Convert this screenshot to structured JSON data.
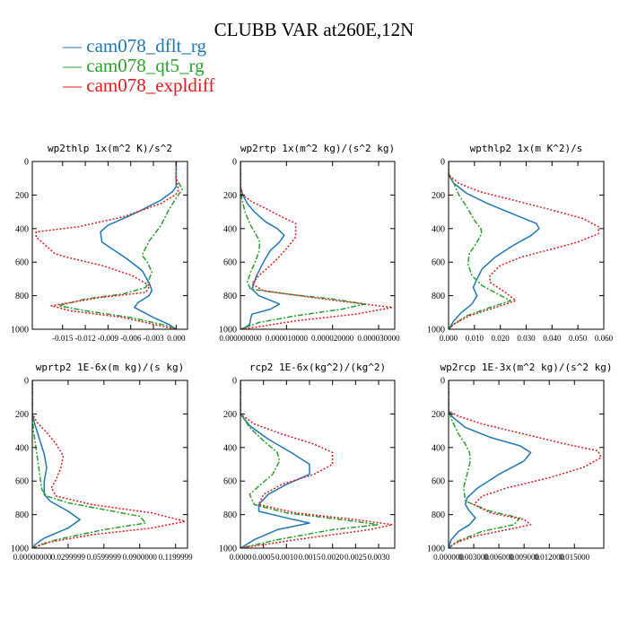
{
  "title": "CLUBB VAR at260E,12N",
  "legend": [
    {
      "name": "cam078_dflt_rg",
      "color": "#1f77b4",
      "dash": "solid"
    },
    {
      "name": "cam078_qt5_rg",
      "color": "#2ca02c",
      "dash": "dashdot"
    },
    {
      "name": "cam078_expldiff",
      "color": "#e31a1c",
      "dash": "dotted"
    }
  ],
  "chart_data": [
    {
      "type": "line",
      "title": "wp2thlp  1x(m^2 K)/s^2",
      "xlim": [
        -0.019,
        0.0015
      ],
      "ylim": [
        0,
        1000
      ],
      "y_inverted": true,
      "yticks": [
        "0",
        "200",
        "400",
        "600",
        "800",
        "1000"
      ],
      "xticks": [
        {
          "v": -0.015,
          "label": "-0.015"
        },
        {
          "v": -0.012,
          "label": "-0.012"
        },
        {
          "v": -0.009,
          "label": "-0.009"
        },
        {
          "v": -0.006,
          "label": "-0.006"
        },
        {
          "v": -0.003,
          "label": "-0.003"
        },
        {
          "v": 0.0,
          "label": "0.000"
        }
      ],
      "series": [
        {
          "name": "cam078_dflt_rg",
          "x": [
            0.0,
            0.0,
            0.0,
            -0.0005,
            -0.002,
            -0.005,
            -0.009,
            -0.01,
            -0.0098,
            -0.0085,
            -0.0065,
            -0.0045,
            -0.0035,
            -0.0032,
            -0.0036,
            -0.005,
            -0.0055,
            -0.003,
            -0.001,
            0.0
          ],
          "y": [
            0,
            100,
            150,
            180,
            230,
            300,
            380,
            420,
            480,
            520,
            580,
            650,
            730,
            770,
            800,
            840,
            870,
            930,
            970,
            1000
          ]
        },
        {
          "name": "cam078_qt5_rg",
          "x": [
            0.0,
            0.0,
            0.0005,
            0.0008,
            0.0,
            -0.001,
            -0.002,
            -0.0035,
            -0.0042,
            -0.0045,
            -0.0038,
            -0.0032,
            -0.004,
            -0.007,
            -0.012,
            -0.0155,
            -0.012,
            -0.006,
            -0.001,
            0.0
          ],
          "y": [
            0,
            100,
            140,
            165,
            220,
            290,
            380,
            470,
            530,
            560,
            600,
            660,
            750,
            790,
            820,
            860,
            890,
            930,
            980,
            1000
          ]
        },
        {
          "name": "cam078_expldiff",
          "x": [
            0.0,
            0.0,
            0.0003,
            0.0,
            -0.002,
            -0.007,
            -0.013,
            -0.0185,
            -0.0185,
            -0.016,
            -0.0145,
            -0.0098,
            -0.0058,
            -0.0035,
            -0.004,
            -0.01,
            -0.0165,
            -0.014,
            -0.007,
            -0.002,
            0.0
          ],
          "y": [
            0,
            100,
            170,
            195,
            250,
            330,
            390,
            420,
            450,
            550,
            570,
            620,
            680,
            740,
            780,
            810,
            860,
            890,
            930,
            980,
            1000
          ]
        }
      ]
    },
    {
      "type": "line",
      "title": "wp2rtp  1x(m^2 kg)/(s^2 kg)",
      "xlim": [
        0,
        3.35e-05
      ],
      "ylim": [
        0,
        1000
      ],
      "y_inverted": true,
      "yticks": [
        "0",
        "200",
        "400",
        "600",
        "800",
        "1000"
      ],
      "xticks": [
        {
          "v": 0,
          "label": "0.000000000"
        },
        {
          "v": 1e-05,
          "label": "0.000010000"
        },
        {
          "v": 2e-05,
          "label": "0.000020000"
        },
        {
          "v": 3e-05,
          "label": "0.000030000"
        }
      ],
      "series": [
        {
          "name": "cam078_dflt_rg",
          "x": [
            0.0,
            0.0,
            5e-07,
            1.5e-06,
            3e-06,
            5.5e-06,
            8e-06,
            9.5e-06,
            8.5e-06,
            6.5e-06,
            5.2e-06,
            3.5e-06,
            2.5e-06,
            4e-06,
            8.5e-06,
            6.5e-06,
            2.5e-06,
            2.2e-06,
            2e-06,
            1e-06,
            0.0
          ],
          "y": [
            0,
            150,
            200,
            250,
            300,
            360,
            400,
            440,
            480,
            530,
            590,
            680,
            760,
            800,
            850,
            880,
            910,
            940,
            970,
            990,
            1000
          ]
        },
        {
          "name": "cam078_qt5_rg",
          "x": [
            0.0,
            0.0,
            3e-07,
            1e-06,
            2.2e-06,
            3.5e-06,
            4.2e-06,
            4e-06,
            3.2e-06,
            2.2e-06,
            1.5e-06,
            2.2e-06,
            1e-05,
            2e-05,
            2.7e-05,
            2.2e-05,
            1.2e-05,
            4e-06,
            0.0
          ],
          "y": [
            0,
            150,
            220,
            300,
            380,
            440,
            480,
            540,
            600,
            660,
            720,
            760,
            790,
            820,
            850,
            880,
            920,
            960,
            1000
          ]
        },
        {
          "name": "cam078_expldiff",
          "x": [
            0.0,
            0.0,
            5e-07,
            2.5e-06,
            5.5e-06,
            9e-06,
            1.2e-05,
            1.2e-05,
            1e-05,
            8e-06,
            6.5e-06,
            4e-06,
            2.5e-06,
            5e-06,
            1.8e-05,
            3.3e-05,
            2.5e-05,
            1.2e-05,
            4e-06,
            0.0
          ],
          "y": [
            0,
            150,
            200,
            240,
            280,
            330,
            370,
            450,
            520,
            580,
            620,
            680,
            730,
            770,
            820,
            870,
            910,
            950,
            985,
            1000
          ]
        }
      ]
    },
    {
      "type": "line",
      "title": "wpthlp2  1x(m K^2)/s",
      "xlim": [
        0,
        0.06
      ],
      "ylim": [
        0,
        1000
      ],
      "y_inverted": true,
      "yticks": [
        "0",
        "200",
        "400",
        "600",
        "800",
        "1000"
      ],
      "xticks": [
        {
          "v": 0.0,
          "label": "0.000"
        },
        {
          "v": 0.01,
          "label": "0.010"
        },
        {
          "v": 0.02,
          "label": "0.020"
        },
        {
          "v": 0.03,
          "label": "0.030"
        },
        {
          "v": 0.04,
          "label": "0.040"
        },
        {
          "v": 0.05,
          "label": "0.050"
        },
        {
          "v": 0.06,
          "label": "0.060"
        }
      ],
      "series": [
        {
          "name": "cam078_dflt_rg",
          "x": [
            0.0,
            0.0,
            0.002,
            0.007,
            0.015,
            0.026,
            0.034,
            0.035,
            0.032,
            0.025,
            0.018,
            0.013,
            0.011,
            0.0095,
            0.011,
            0.009,
            0.005,
            0.002,
            0.0
          ],
          "y": [
            0,
            80,
            130,
            190,
            250,
            320,
            370,
            400,
            440,
            500,
            570,
            640,
            700,
            750,
            800,
            850,
            900,
            950,
            1000
          ]
        },
        {
          "name": "cam078_qt5_rg",
          "x": [
            0.0,
            0.0,
            0.002,
            0.004,
            0.007,
            0.01,
            0.0125,
            0.0128,
            0.011,
            0.008,
            0.0075,
            0.009,
            0.013,
            0.019,
            0.024,
            0.016,
            0.007,
            0.002,
            0.0
          ],
          "y": [
            0,
            70,
            130,
            200,
            270,
            350,
            400,
            430,
            480,
            550,
            610,
            680,
            740,
            790,
            830,
            870,
            920,
            970,
            1000
          ]
        },
        {
          "name": "cam078_expldiff",
          "x": [
            0.0,
            0.0,
            0.004,
            0.012,
            0.025,
            0.04,
            0.052,
            0.058,
            0.058,
            0.05,
            0.038,
            0.028,
            0.02,
            0.016,
            0.016,
            0.022,
            0.026,
            0.018,
            0.008,
            0.002,
            0.0
          ],
          "y": [
            0,
            80,
            130,
            180,
            230,
            290,
            340,
            390,
            430,
            480,
            530,
            570,
            620,
            680,
            720,
            780,
            830,
            870,
            920,
            970,
            1000
          ]
        }
      ]
    },
    {
      "type": "line",
      "title": "wprtp2  1E-6x(m kg)/(s kg)",
      "xlim": [
        0,
        0.13
      ],
      "ylim": [
        0,
        1000
      ],
      "y_inverted": true,
      "yticks": [
        "0",
        "200",
        "400",
        "600",
        "800",
        "1000"
      ],
      "xticks": [
        {
          "v": 0,
          "label": "0.00000000"
        },
        {
          "v": 0.0299999,
          "label": "0.0299999"
        },
        {
          "v": 0.0599999,
          "label": "0.0599999"
        },
        {
          "v": 0.09,
          "label": "0.0900000"
        },
        {
          "v": 0.1199999,
          "label": "0.1199999"
        }
      ],
      "series": [
        {
          "name": "cam078_dflt_rg",
          "x": [
            0.0,
            0.0,
            0.002,
            0.006,
            0.01,
            0.012,
            0.01,
            0.01,
            0.015,
            0.03,
            0.04,
            0.03,
            0.01,
            0.002,
            0.0
          ],
          "y": [
            0,
            200,
            260,
            350,
            440,
            520,
            600,
            680,
            720,
            780,
            830,
            880,
            940,
            980,
            1000
          ]
        },
        {
          "name": "cam078_qt5_rg",
          "x": [
            0.0,
            0.0,
            0.001,
            0.003,
            0.005,
            0.007,
            0.008,
            0.012,
            0.03,
            0.06,
            0.09,
            0.095,
            0.06,
            0.02,
            0.0
          ],
          "y": [
            0,
            200,
            300,
            400,
            500,
            600,
            650,
            690,
            730,
            770,
            810,
            850,
            890,
            950,
            1000
          ]
        },
        {
          "name": "cam078_expldiff",
          "x": [
            0.0,
            0.0,
            0.004,
            0.012,
            0.02,
            0.026,
            0.024,
            0.02,
            0.016,
            0.02,
            0.05,
            0.1,
            0.128,
            0.1,
            0.05,
            0.01,
            0.0
          ],
          "y": [
            0,
            200,
            250,
            310,
            380,
            450,
            520,
            590,
            640,
            690,
            740,
            790,
            840,
            880,
            920,
            970,
            1000
          ]
        }
      ]
    },
    {
      "type": "line",
      "title": "rcp2  1E-6x(kg^2)/(kg^2)",
      "xlim": [
        0,
        0.00335
      ],
      "ylim": [
        0,
        1000
      ],
      "y_inverted": true,
      "yticks": [
        "0",
        "200",
        "400",
        "600",
        "800",
        "1000"
      ],
      "xticks": [
        {
          "v": 0.0,
          "label": "0.0000"
        },
        {
          "v": 0.0005,
          "label": "0.0005"
        },
        {
          "v": 0.001,
          "label": "0.0010"
        },
        {
          "v": 0.0015,
          "label": "0.0015"
        },
        {
          "v": 0.002,
          "label": "0.0020"
        },
        {
          "v": 0.0025,
          "label": "0.0025"
        },
        {
          "v": 0.003,
          "label": "0.0030"
        }
      ],
      "series": [
        {
          "name": "cam078_dflt_rg",
          "x": [
            0.0,
            0.0,
            0.0002,
            0.0006,
            0.0011,
            0.0015,
            0.0015,
            0.001,
            0.0006,
            0.0004,
            0.0004,
            0.001,
            0.0015,
            0.0008,
            0.0003,
            0.0
          ],
          "y": [
            0,
            200,
            270,
            350,
            430,
            500,
            560,
            620,
            680,
            740,
            780,
            820,
            850,
            890,
            950,
            1000
          ]
        },
        {
          "name": "cam078_qt5_rg",
          "x": [
            0.0,
            0.0,
            0.0002,
            0.0005,
            0.0008,
            0.00085,
            0.0007,
            0.0004,
            0.0002,
            0.0003,
            0.001,
            0.0022,
            0.003,
            0.002,
            0.0008,
            0.0
          ],
          "y": [
            0,
            200,
            280,
            360,
            430,
            480,
            560,
            630,
            680,
            740,
            790,
            830,
            860,
            890,
            950,
            1000
          ]
        },
        {
          "name": "cam078_expldiff",
          "x": [
            0.0,
            0.0,
            0.0003,
            0.0009,
            0.0016,
            0.002,
            0.002,
            0.0016,
            0.0009,
            0.0005,
            0.0004,
            0.0012,
            0.0025,
            0.0033,
            0.0028,
            0.0012,
            0.0
          ],
          "y": [
            0,
            200,
            260,
            320,
            380,
            430,
            500,
            560,
            620,
            680,
            740,
            790,
            830,
            860,
            890,
            950,
            1000
          ]
        }
      ]
    },
    {
      "type": "line",
      "title": "wp2rcp  1E-3x(m^2 kg)/(s^2 kg)",
      "xlim": [
        0,
        0.0185
      ],
      "ylim": [
        0,
        1000
      ],
      "y_inverted": true,
      "yticks": [
        "0",
        "200",
        "400",
        "600",
        "800",
        "1000"
      ],
      "xticks": [
        {
          "v": 0.0,
          "label": "0.000000"
        },
        {
          "v": 0.003,
          "label": "0.003000"
        },
        {
          "v": 0.006,
          "label": "0.006000"
        },
        {
          "v": 0.009,
          "label": "0.009000"
        },
        {
          "v": 0.012,
          "label": "0.012000"
        },
        {
          "v": 0.015,
          "label": "0.015000"
        }
      ],
      "series": [
        {
          "name": "cam078_dflt_rg",
          "x": [
            0.0,
            0.0,
            0.0005,
            0.002,
            0.005,
            0.0085,
            0.0098,
            0.009,
            0.006,
            0.0035,
            0.0022,
            0.002,
            0.0025,
            0.0032,
            0.0025,
            0.0012,
            0.0003,
            0.0
          ],
          "y": [
            0,
            180,
            220,
            280,
            340,
            390,
            430,
            480,
            560,
            640,
            700,
            740,
            780,
            820,
            860,
            900,
            950,
            1000
          ]
        },
        {
          "name": "cam078_qt5_rg",
          "x": [
            0.0,
            0.0,
            0.0005,
            0.0012,
            0.002,
            0.0025,
            0.0026,
            0.0022,
            0.0018,
            0.002,
            0.005,
            0.0085,
            0.0078,
            0.004,
            0.001,
            0.0
          ],
          "y": [
            0,
            180,
            250,
            320,
            380,
            430,
            480,
            560,
            640,
            720,
            780,
            820,
            860,
            900,
            960,
            1000
          ]
        },
        {
          "name": "cam078_expldiff",
          "x": [
            0.0,
            0.0,
            0.001,
            0.004,
            0.009,
            0.014,
            0.0178,
            0.0182,
            0.016,
            0.012,
            0.007,
            0.004,
            0.003,
            0.005,
            0.009,
            0.0098,
            0.007,
            0.003,
            0.0008,
            0.0
          ],
          "y": [
            0,
            180,
            210,
            260,
            320,
            380,
            420,
            460,
            520,
            580,
            640,
            690,
            740,
            790,
            830,
            860,
            890,
            930,
            970,
            1000
          ]
        }
      ]
    }
  ]
}
